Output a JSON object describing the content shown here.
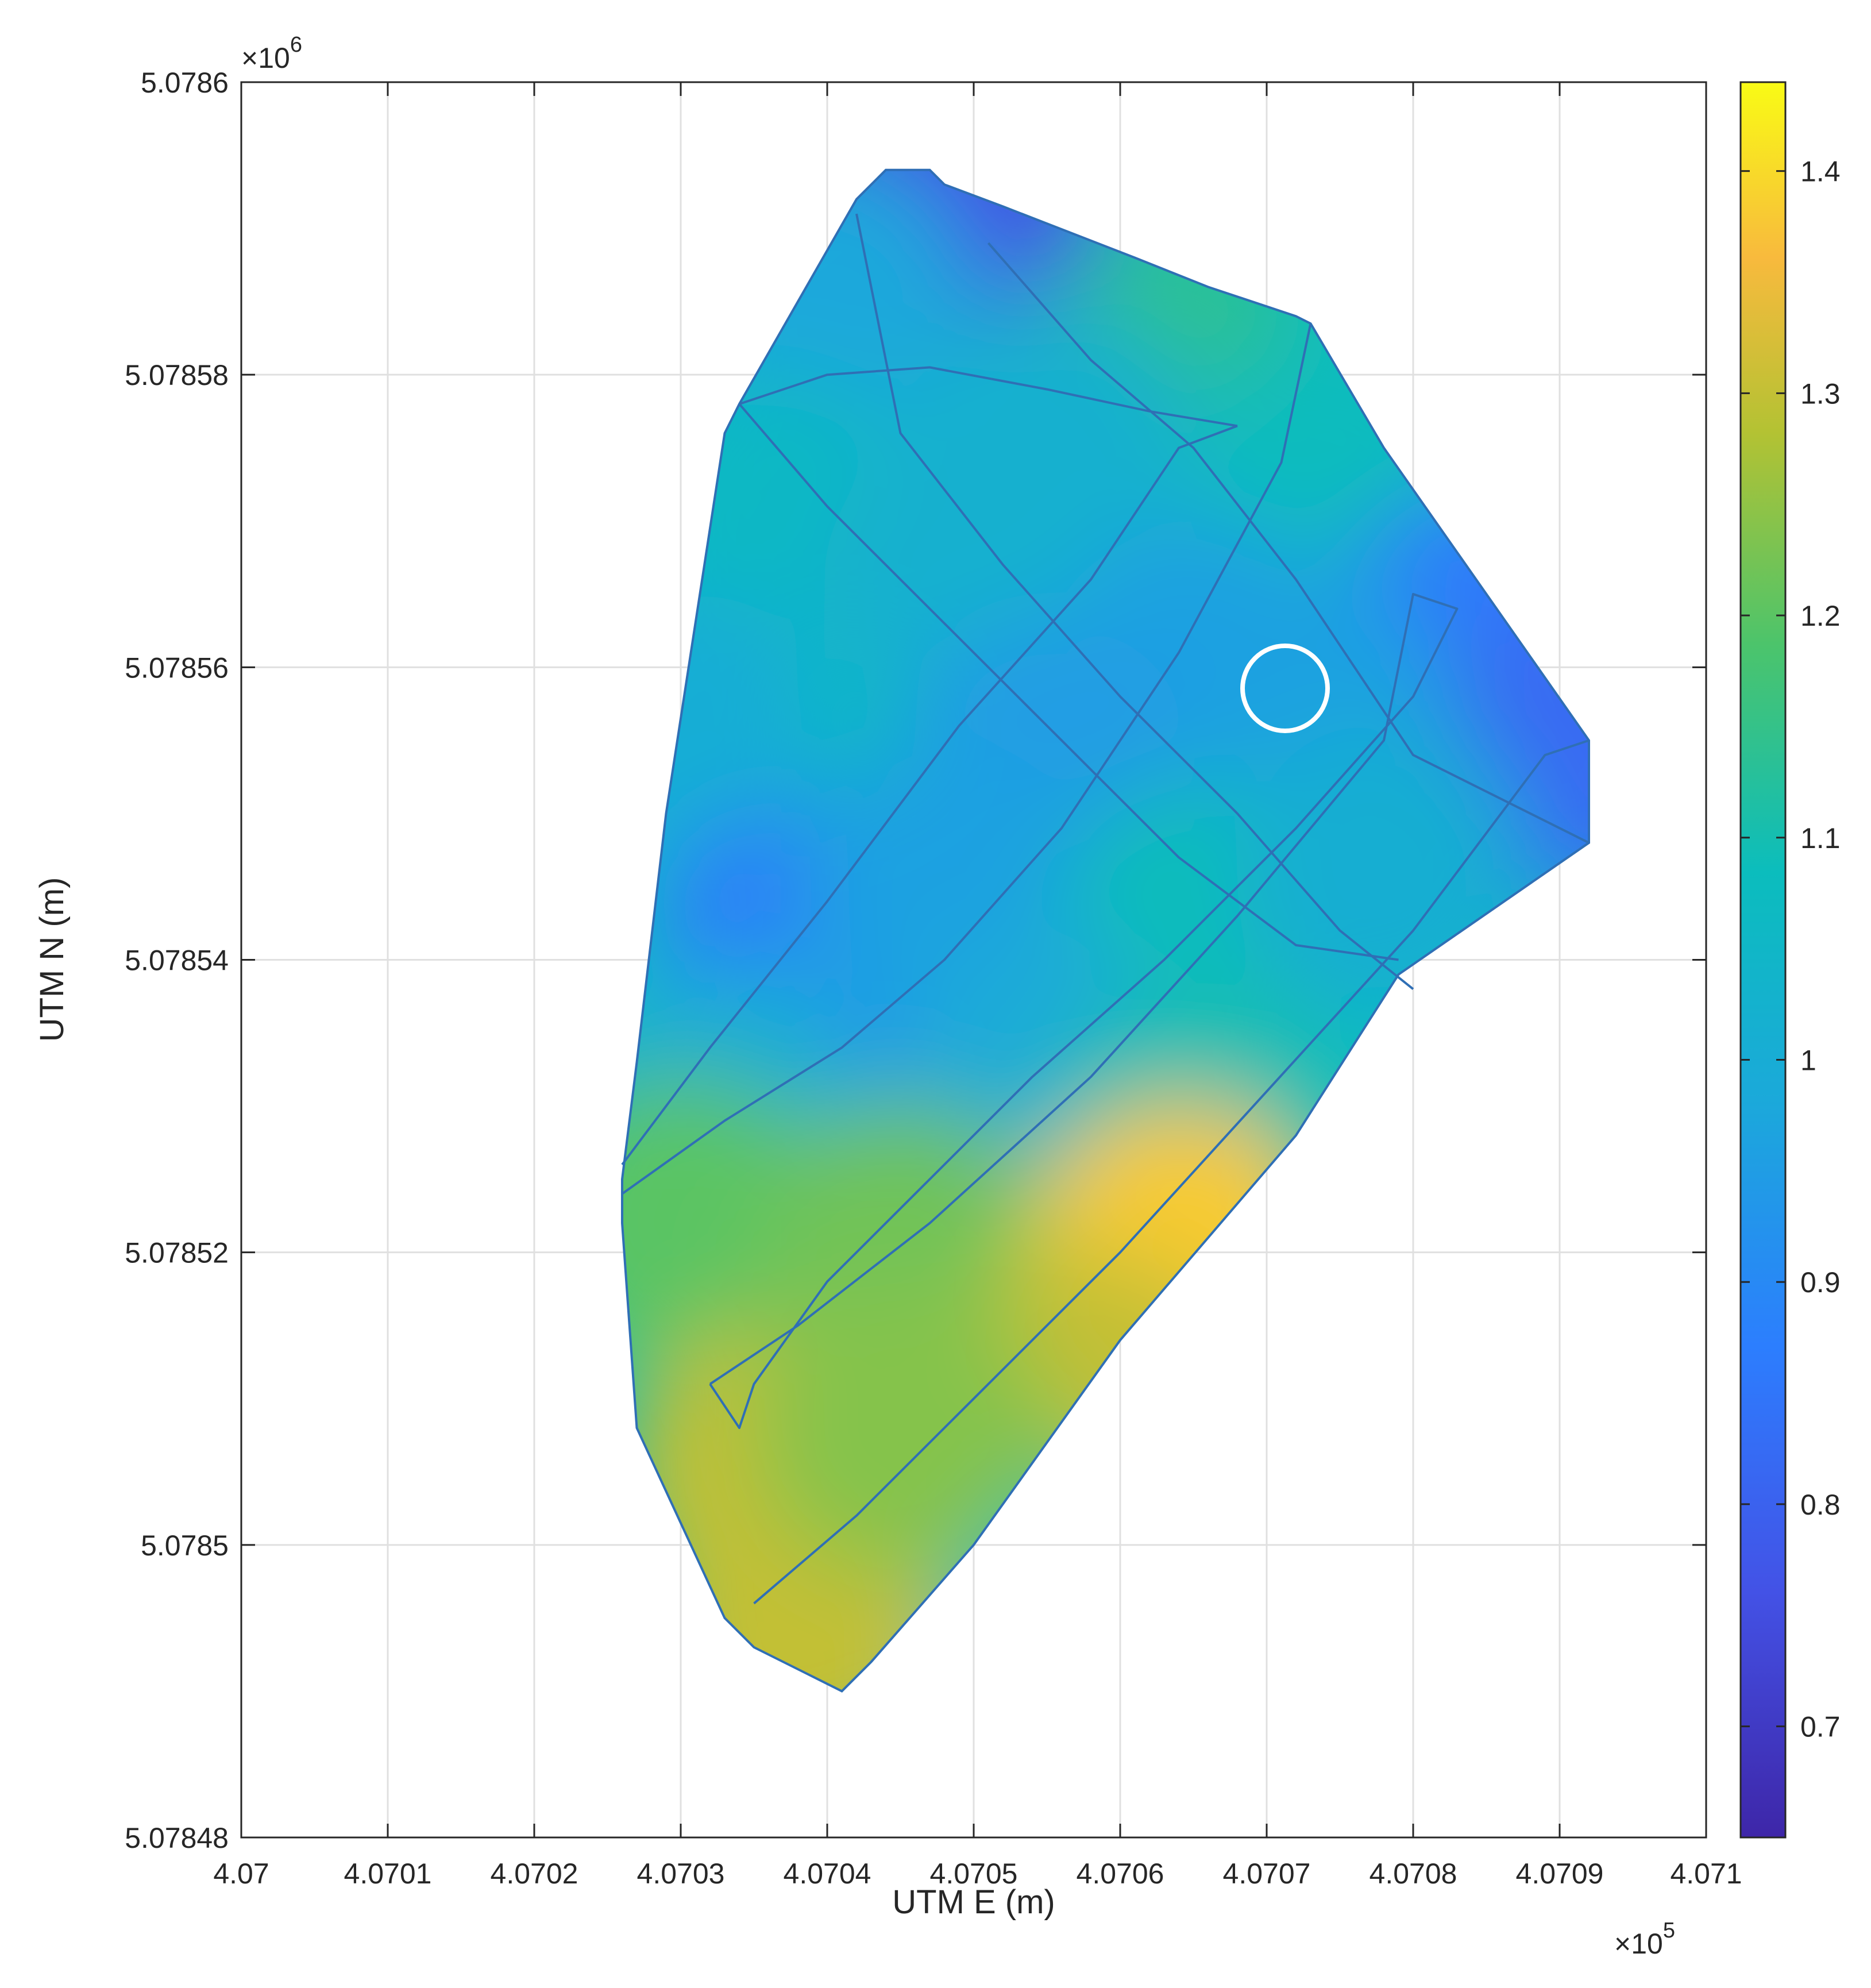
{
  "chart_data": {
    "type": "heatmap",
    "xlabel": "UTM E (m)",
    "ylabel": "UTM N (m)",
    "xlim": [
      407000,
      407100
    ],
    "ylim": [
      5078480,
      5078600
    ],
    "x_ticks": [
      407000,
      407010,
      407020,
      407030,
      407040,
      407050,
      407060,
      407070,
      407080,
      407090,
      407100
    ],
    "x_tick_labels": [
      "4.07",
      "4.0701",
      "4.0702",
      "4.0703",
      "4.0704",
      "4.0705",
      "4.0706",
      "4.0707",
      "4.0708",
      "4.0709",
      "4.071"
    ],
    "x_exponent": {
      "base": "×10",
      "power": "5"
    },
    "y_ticks": [
      5078480,
      5078500,
      5078520,
      5078540,
      5078560,
      5078580,
      5078600
    ],
    "y_tick_labels": [
      "5.07848",
      "5.0785",
      "5.07852",
      "5.07854",
      "5.07856",
      "5.07858",
      "5.0786"
    ],
    "y_exponent": {
      "base": "×10",
      "power": "6"
    },
    "grid": true,
    "colormap": "parula",
    "colorbar": {
      "location": "right",
      "limits": [
        0.65,
        1.44
      ],
      "ticks": [
        0.7,
        0.8,
        0.9,
        1.0,
        1.1,
        1.2,
        1.3,
        1.4
      ],
      "tick_labels": [
        "0.7",
        "0.8",
        "0.9",
        "1",
        "1.1",
        "1.2",
        "1.3",
        "1.4"
      ]
    },
    "field_boundary": [
      [
        407044,
        5078594
      ],
      [
        407047,
        5078594
      ],
      [
        407048,
        5078593
      ],
      [
        407052,
        5078591.5
      ],
      [
        407061,
        5078588
      ],
      [
        407066,
        5078586
      ],
      [
        407072,
        5078584
      ],
      [
        407073,
        5078583.5
      ],
      [
        407078,
        5078575
      ],
      [
        407085,
        5078565
      ],
      [
        407092,
        5078555
      ],
      [
        407092,
        5078548
      ],
      [
        407079,
        5078539
      ],
      [
        407072,
        5078528
      ],
      [
        407060,
        5078514
      ],
      [
        407050,
        5078500
      ],
      [
        407043,
        5078492
      ],
      [
        407041,
        5078490
      ],
      [
        407035,
        5078493
      ],
      [
        407033,
        5078495
      ],
      [
        407027,
        5078508
      ],
      [
        407026,
        5078522
      ],
      [
        407026,
        5078525
      ],
      [
        407027,
        5078533
      ],
      [
        407029,
        5078550
      ],
      [
        407033,
        5078576
      ],
      [
        407034,
        5078578
      ],
      [
        407038,
        5078585
      ],
      [
        407042,
        5078592
      ]
    ],
    "field_samples": [
      [
        407046,
        5078592,
        0.7
      ],
      [
        407049,
        5078590,
        0.76
      ],
      [
        407040,
        5078585,
        0.98
      ],
      [
        407063,
        5078580,
        1.14
      ],
      [
        407075,
        5078573,
        1.08
      ],
      [
        407055,
        5078575,
        1.02
      ],
      [
        407085,
        5078562,
        0.86
      ],
      [
        407090,
        5078554,
        0.82
      ],
      [
        407036,
        5078570,
        1.06
      ],
      [
        407050,
        5078566,
        1.02
      ],
      [
        407066,
        5078560,
        0.96
      ],
      [
        407073,
        5078556,
        0.96
      ],
      [
        407055,
        5078553,
        0.95
      ],
      [
        407030,
        5078555,
        1.0
      ],
      [
        407038,
        5078540,
        0.86
      ],
      [
        407048,
        5078545,
        0.96
      ],
      [
        407066,
        5078542,
        1.09
      ],
      [
        407078,
        5078546,
        1.01
      ],
      [
        407033,
        5078530,
        1.0
      ],
      [
        407055,
        5078532,
        0.99
      ],
      [
        407065,
        5078528,
        1.1
      ],
      [
        407030,
        5078522,
        1.2
      ],
      [
        407045,
        5078520,
        1.22
      ],
      [
        407064,
        5078520,
        1.38
      ],
      [
        407036,
        5078505,
        1.3
      ],
      [
        407058,
        5078510,
        1.3
      ],
      [
        407050,
        5078500,
        1.18
      ],
      [
        407048,
        5078497,
        1.1
      ],
      [
        407038,
        5078494,
        1.3
      ],
      [
        407045,
        5078508,
        1.24
      ]
    ],
    "track_segments": [
      [
        [
          407034,
          5078578
        ],
        [
          407040,
          5078580
        ],
        [
          407047,
          5078580.5
        ],
        [
          407055,
          5078579
        ],
        [
          407062,
          5078577.5
        ],
        [
          407068,
          5078576.5
        ]
      ],
      [
        [
          407042,
          5078591
        ],
        [
          407045,
          5078576
        ],
        [
          407052,
          5078567
        ],
        [
          407060,
          5078558
        ],
        [
          407068,
          5078550
        ],
        [
          407075,
          5078542
        ],
        [
          407080,
          5078538
        ]
      ],
      [
        [
          407051,
          5078589
        ],
        [
          407058,
          5078581
        ],
        [
          407065,
          5078575
        ],
        [
          407072,
          5078566
        ],
        [
          407080,
          5078554
        ],
        [
          407092,
          5078548
        ]
      ],
      [
        [
          407034,
          5078578
        ],
        [
          407040,
          5078571
        ],
        [
          407048,
          5078563
        ],
        [
          407056,
          5078555
        ],
        [
          407064,
          5078547
        ],
        [
          407072,
          5078541
        ],
        [
          407079,
          5078540
        ]
      ],
      [
        [
          407026,
          5078524
        ],
        [
          407033,
          5078529
        ],
        [
          407041,
          5078534
        ],
        [
          407048,
          5078540
        ],
        [
          407056,
          5078549
        ],
        [
          407064,
          5078561
        ],
        [
          407071,
          5078574
        ],
        [
          407073,
          5078583.5
        ]
      ],
      [
        [
          407026,
          5078526
        ],
        [
          407032,
          5078534
        ],
        [
          407040,
          5078544
        ],
        [
          407049,
          5078556
        ],
        [
          407058,
          5078566
        ],
        [
          407064,
          5078575
        ],
        [
          407068,
          5078576.5
        ]
      ],
      [
        [
          407032,
          5078511
        ],
        [
          407038,
          5078515
        ],
        [
          407047,
          5078522
        ],
        [
          407058,
          5078532
        ],
        [
          407068,
          5078543
        ],
        [
          407078,
          5078555
        ],
        [
          407080,
          5078565
        ],
        [
          407083,
          5078564
        ],
        [
          407080,
          5078558
        ],
        [
          407072,
          5078549
        ],
        [
          407063,
          5078540
        ],
        [
          407054,
          5078532
        ],
        [
          407046,
          5078524
        ],
        [
          407040,
          5078518
        ],
        [
          407035,
          5078511
        ],
        [
          407034,
          5078508
        ],
        [
          407032,
          5078511
        ]
      ],
      [
        [
          407035,
          5078496
        ],
        [
          407042,
          5078502
        ],
        [
          407050,
          5078510
        ],
        [
          407060,
          5078520
        ],
        [
          407070,
          5078531
        ],
        [
          407080,
          5078542
        ],
        [
          407089,
          5078554
        ],
        [
          407092,
          5078555
        ]
      ]
    ]
  }
}
